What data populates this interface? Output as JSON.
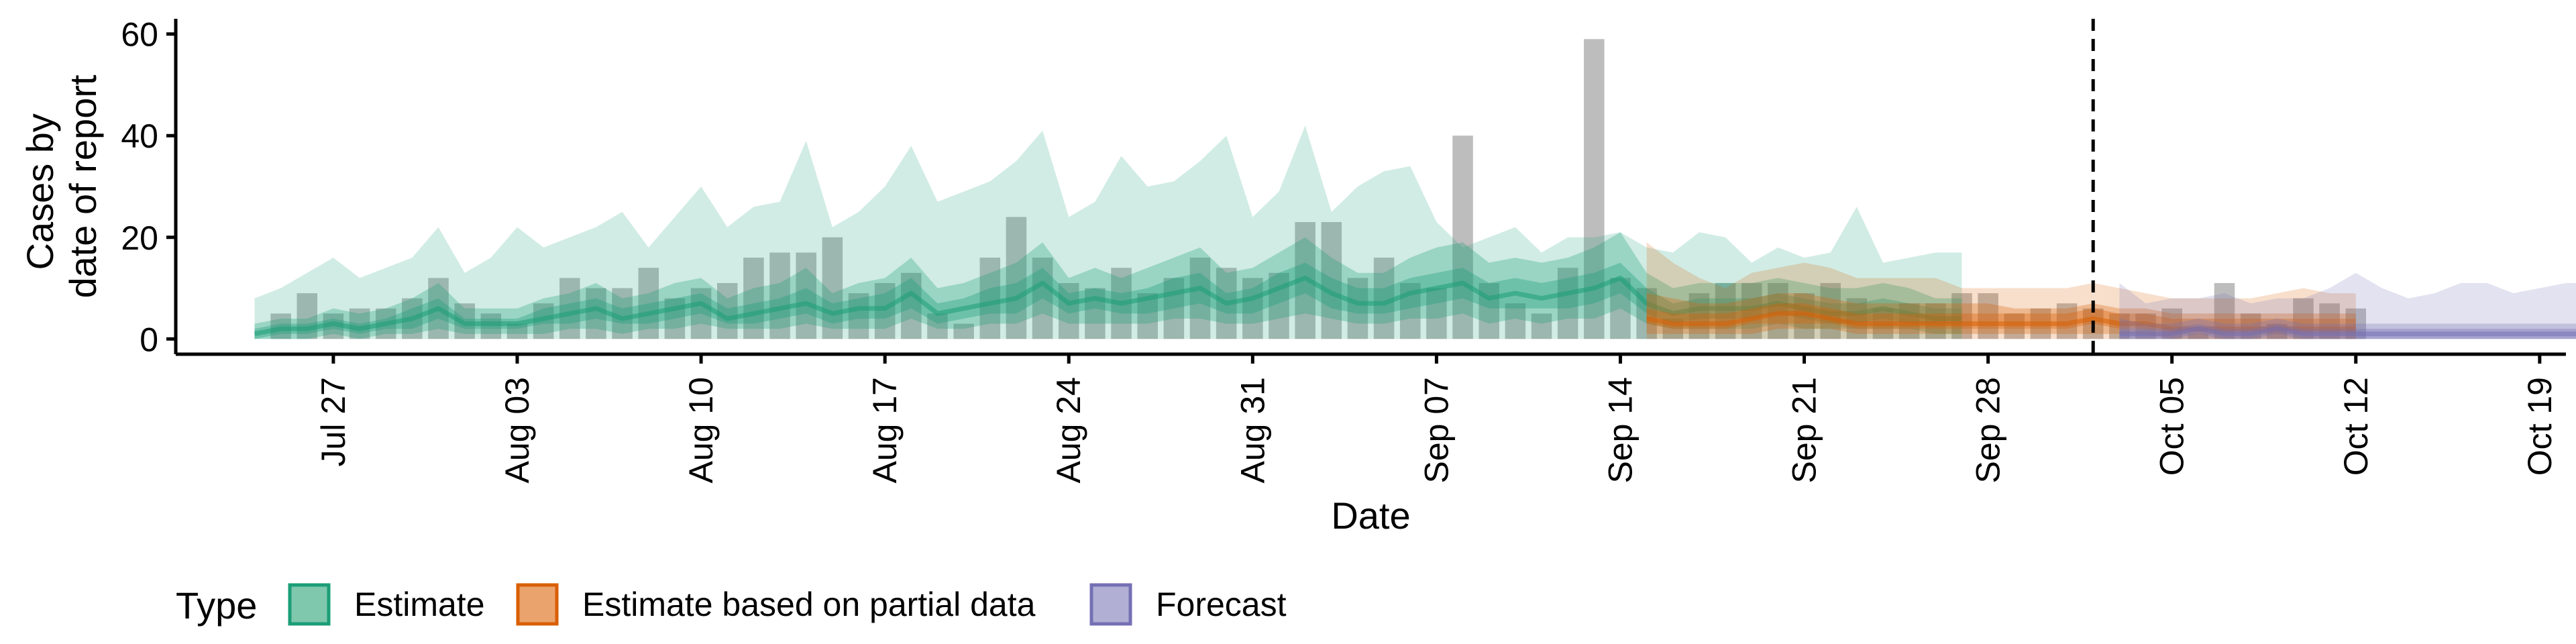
{
  "chart_data": {
    "type": "bar",
    "xlabel": "Date",
    "ylabel_lines": [
      "Cases by",
      "date of report"
    ],
    "ylim": [
      -3,
      63
    ],
    "xlim": [
      "2021-07-21",
      "2021-10-20"
    ],
    "y_ticks": [
      0,
      20,
      40,
      60
    ],
    "x_ticks": [
      {
        "date": "2021-07-27",
        "label": "Jul 27"
      },
      {
        "date": "2021-08-03",
        "label": "Aug 03"
      },
      {
        "date": "2021-08-10",
        "label": "Aug 10"
      },
      {
        "date": "2021-08-17",
        "label": "Aug 17"
      },
      {
        "date": "2021-08-24",
        "label": "Aug 24"
      },
      {
        "date": "2021-08-31",
        "label": "Aug 31"
      },
      {
        "date": "2021-09-07",
        "label": "Sep 07"
      },
      {
        "date": "2021-09-14",
        "label": "Sep 14"
      },
      {
        "date": "2021-09-21",
        "label": "Sep 21"
      },
      {
        "date": "2021-09-28",
        "label": "Sep 28"
      },
      {
        "date": "2021-10-05",
        "label": "Oct 05"
      },
      {
        "date": "2021-10-12",
        "label": "Oct 12"
      },
      {
        "date": "2021-10-19",
        "label": "Oct 19"
      }
    ],
    "forecast_date": "2021-10-02",
    "legend": {
      "title": "Type",
      "position": "bottom",
      "entries": [
        {
          "name": "Estimate",
          "fill": "#7fc7ad",
          "border": "#1b9e77"
        },
        {
          "name": "Estimate based on partial data",
          "fill": "#eaa36d",
          "border": "#d95f02"
        },
        {
          "name": "Forecast",
          "fill": "#b2afd4",
          "border": "#7570b3"
        }
      ]
    },
    "observed_cases": {
      "color": "#9a9a9a",
      "start_date": "2021-07-25",
      "values": [
        5,
        9,
        5,
        6,
        6,
        8,
        12,
        7,
        5,
        3,
        7,
        12,
        10,
        10,
        14,
        8,
        10,
        11,
        16,
        17,
        17,
        20,
        9,
        11,
        13,
        5,
        3,
        16,
        24,
        16,
        11,
        10,
        14,
        9,
        12,
        16,
        14,
        12,
        13,
        23,
        23,
        12,
        16,
        11,
        10,
        40,
        11,
        7,
        5,
        14,
        59,
        12,
        10,
        4,
        9,
        11,
        11,
        11,
        9,
        11,
        8,
        6,
        7,
        7,
        9,
        9,
        5,
        6,
        7,
        6,
        5,
        5,
        6,
        1,
        11,
        5,
        3,
        8,
        7,
        6
      ]
    },
    "series": [
      {
        "name": "Estimate",
        "start_date": "2021-07-24",
        "color": "#1b9e77",
        "median": [
          1,
          2,
          2,
          3,
          2,
          3,
          4,
          6,
          3,
          3,
          3,
          4,
          5,
          6,
          4,
          5,
          6,
          7,
          4,
          5,
          6,
          7,
          5,
          6,
          6,
          9,
          5,
          6,
          7,
          8,
          11,
          7,
          8,
          7,
          8,
          9,
          10,
          7,
          8,
          10,
          12,
          9,
          7,
          7,
          9,
          10,
          11,
          8,
          9,
          8,
          9,
          10,
          12,
          7,
          5,
          6,
          6,
          6,
          7,
          6,
          5,
          5,
          6,
          5,
          4,
          4
        ],
        "upper20": [
          2,
          3,
          3,
          4,
          3,
          4,
          6,
          8,
          4,
          4,
          4,
          6,
          7,
          8,
          6,
          7,
          8,
          9,
          6,
          7,
          8,
          10,
          7,
          8,
          9,
          12,
          7,
          8,
          10,
          11,
          14,
          9,
          10,
          9,
          10,
          12,
          13,
          9,
          10,
          13,
          15,
          12,
          10,
          10,
          12,
          13,
          14,
          11,
          12,
          11,
          12,
          13,
          15,
          10,
          7,
          8,
          8,
          8,
          9,
          8,
          7,
          7,
          8,
          7,
          6,
          6
        ],
        "lower20": [
          0,
          1,
          1,
          2,
          1,
          2,
          2,
          4,
          2,
          2,
          2,
          3,
          3,
          4,
          3,
          3,
          4,
          5,
          3,
          3,
          4,
          5,
          3,
          4,
          4,
          6,
          3,
          4,
          5,
          5,
          8,
          5,
          6,
          5,
          5,
          6,
          7,
          5,
          5,
          7,
          9,
          6,
          5,
          5,
          6,
          7,
          8,
          6,
          6,
          6,
          6,
          7,
          9,
          5,
          3,
          4,
          4,
          4,
          5,
          4,
          3,
          3,
          4,
          3,
          3,
          3
        ],
        "upper50": [
          3,
          4,
          4,
          6,
          5,
          6,
          8,
          11,
          6,
          6,
          6,
          8,
          9,
          11,
          8,
          9,
          11,
          12,
          8,
          10,
          11,
          14,
          9,
          11,
          12,
          16,
          10,
          11,
          13,
          15,
          19,
          12,
          14,
          12,
          14,
          16,
          18,
          13,
          14,
          17,
          20,
          16,
          13,
          13,
          16,
          18,
          19,
          15,
          16,
          15,
          16,
          18,
          21,
          13,
          10,
          11,
          11,
          11,
          12,
          11,
          10,
          10,
          11,
          10,
          8,
          8
        ],
        "lower50": [
          0,
          0,
          0,
          1,
          0,
          1,
          1,
          2,
          1,
          1,
          1,
          1,
          2,
          2,
          1,
          2,
          2,
          3,
          2,
          2,
          2,
          3,
          2,
          2,
          2,
          4,
          2,
          2,
          3,
          3,
          5,
          3,
          3,
          3,
          3,
          4,
          4,
          3,
          3,
          4,
          5,
          4,
          3,
          3,
          4,
          4,
          5,
          3,
          4,
          3,
          4,
          4,
          6,
          3,
          2,
          2,
          2,
          2,
          3,
          2,
          2,
          2,
          2,
          2,
          1,
          1
        ],
        "upper90": [
          8,
          10,
          13,
          16,
          12,
          14,
          16,
          22,
          13,
          16,
          22,
          18,
          20,
          22,
          25,
          18,
          24,
          30,
          22,
          26,
          27,
          39,
          22,
          25,
          30,
          38,
          27,
          29,
          31,
          35,
          41,
          24,
          27,
          36,
          30,
          31,
          35,
          40,
          24,
          29,
          42,
          25,
          30,
          33,
          34,
          23,
          18,
          20,
          22,
          17,
          20,
          20,
          21,
          18,
          17,
          21,
          20,
          15,
          18,
          16,
          17,
          26,
          15,
          16,
          17,
          17
        ],
        "lower90": [
          0,
          0,
          0,
          0,
          0,
          0,
          0,
          0,
          0,
          0,
          0,
          0,
          0,
          0,
          0,
          0,
          0,
          0,
          0,
          0,
          0,
          0,
          0,
          0,
          0,
          0,
          0,
          0,
          0,
          0,
          0,
          0,
          0,
          0,
          0,
          0,
          0,
          0,
          0,
          0,
          0,
          0,
          0,
          0,
          0,
          0,
          0,
          0,
          0,
          0,
          0,
          0,
          0,
          0,
          0,
          0,
          0,
          0,
          0,
          0,
          0,
          0,
          0,
          0,
          0,
          0
        ]
      },
      {
        "name": "Estimate based on partial data",
        "start_date": "2021-09-15",
        "color": "#d95f02",
        "median": [
          4,
          3,
          3,
          3,
          4,
          5,
          5,
          4,
          3,
          3,
          3,
          3,
          3,
          3,
          3,
          3,
          3,
          4,
          3,
          3,
          2,
          2,
          2,
          2,
          2,
          2,
          2,
          2
        ],
        "upper20": [
          6,
          5,
          5,
          5,
          6,
          7,
          7,
          6,
          5,
          5,
          5,
          5,
          5,
          5,
          5,
          5,
          5,
          6,
          5,
          5,
          4,
          4,
          4,
          4,
          4,
          4,
          4,
          4
        ],
        "lower20": [
          3,
          2,
          2,
          2,
          3,
          3,
          3,
          3,
          2,
          2,
          2,
          2,
          2,
          2,
          2,
          2,
          2,
          3,
          2,
          2,
          1,
          1,
          1,
          1,
          1,
          1,
          1,
          1
        ],
        "upper50": [
          9,
          8,
          7,
          7,
          8,
          9,
          9,
          8,
          7,
          7,
          7,
          7,
          7,
          7,
          6,
          6,
          6,
          7,
          6,
          6,
          5,
          5,
          5,
          5,
          5,
          5,
          5,
          5
        ],
        "lower50": [
          1,
          1,
          1,
          1,
          1,
          2,
          2,
          2,
          1,
          1,
          1,
          1,
          1,
          1,
          1,
          1,
          1,
          1,
          1,
          1,
          0,
          0,
          0,
          0,
          0,
          0,
          0,
          0
        ],
        "upper90": [
          19,
          15,
          12,
          10,
          13,
          14,
          15,
          14,
          12,
          12,
          12,
          12,
          10,
          10,
          10,
          10,
          10,
          11,
          10,
          9,
          8,
          8,
          8,
          8,
          9,
          10,
          9,
          9
        ],
        "lower90": [
          0,
          0,
          0,
          0,
          0,
          0,
          0,
          0,
          0,
          0,
          0,
          0,
          0,
          0,
          0,
          0,
          0,
          0,
          0,
          0,
          0,
          0,
          0,
          0,
          0,
          0,
          0,
          0
        ]
      },
      {
        "name": "Forecast",
        "start_date": "2021-10-03",
        "color": "#7570b3",
        "median": [
          1,
          1,
          1,
          2,
          1,
          1,
          2,
          1,
          1,
          1,
          1,
          1,
          1,
          1,
          1,
          1,
          1,
          1,
          1,
          1,
          1
        ],
        "upper20": [
          2,
          2,
          2,
          3,
          2,
          2,
          3,
          2,
          2,
          2,
          2,
          2,
          2,
          2,
          2,
          2,
          2,
          2,
          2,
          2,
          2
        ],
        "lower20": [
          0,
          0,
          0,
          1,
          0,
          0,
          1,
          0,
          0,
          0,
          0,
          0,
          0,
          0,
          0,
          0,
          0,
          0,
          0,
          0,
          0
        ],
        "upper50": [
          4,
          3,
          3,
          4,
          3,
          3,
          4,
          3,
          3,
          3,
          3,
          3,
          3,
          3,
          3,
          3,
          3,
          3,
          3,
          3,
          3
        ],
        "lower50": [
          0,
          0,
          0,
          0,
          0,
          0,
          0,
          0,
          0,
          0,
          0,
          0,
          0,
          0,
          0,
          0,
          0,
          0,
          0,
          0,
          0
        ],
        "upper90": [
          11,
          7,
          8,
          8,
          9,
          7,
          8,
          8,
          10,
          13,
          10,
          8,
          9,
          11,
          11,
          9,
          10,
          11,
          11,
          11,
          11
        ],
        "lower90": [
          0,
          0,
          0,
          0,
          0,
          0,
          0,
          0,
          0,
          0,
          0,
          0,
          0,
          0,
          0,
          0,
          0,
          0,
          0,
          0,
          0
        ]
      }
    ]
  }
}
